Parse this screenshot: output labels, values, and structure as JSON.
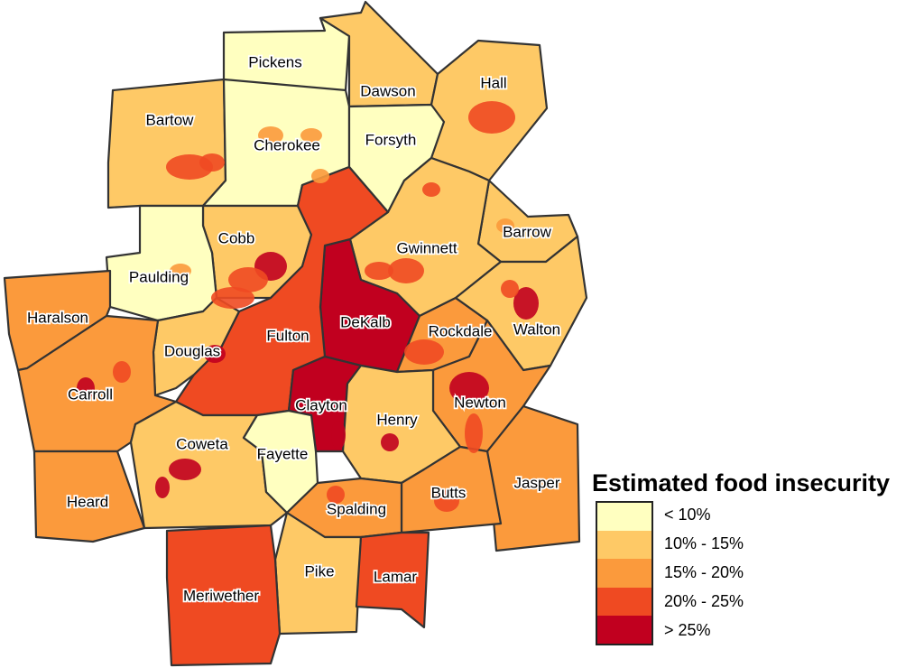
{
  "legend": {
    "title": "Estimated food insecurity",
    "classes": [
      {
        "label": "< 10%",
        "color": "#ffffc0"
      },
      {
        "label": "10% - 15%",
        "color": "#fec966"
      },
      {
        "label": "15% - 20%",
        "color": "#fb9a3c"
      },
      {
        "label": "20% - 25%",
        "color": "#ef4a22"
      },
      {
        "label": "> 25%",
        "color": "#c1001f"
      }
    ]
  },
  "counties": [
    {
      "name": "Pickens",
      "class": 0
    },
    {
      "name": "Dawson",
      "class": 1
    },
    {
      "name": "Hall",
      "class": 1
    },
    {
      "name": "Bartow",
      "class": 1
    },
    {
      "name": "Cherokee",
      "class": 0
    },
    {
      "name": "Forsyth",
      "class": 0
    },
    {
      "name": "Barrow",
      "class": 1
    },
    {
      "name": "Cobb",
      "class": 1
    },
    {
      "name": "Gwinnett",
      "class": 1
    },
    {
      "name": "Paulding",
      "class": 0
    },
    {
      "name": "Haralson",
      "class": 2
    },
    {
      "name": "DeKalb",
      "class": 4
    },
    {
      "name": "Fulton",
      "class": 3
    },
    {
      "name": "Rockdale",
      "class": 2
    },
    {
      "name": "Walton",
      "class": 1
    },
    {
      "name": "Douglas",
      "class": 1
    },
    {
      "name": "Carroll",
      "class": 2
    },
    {
      "name": "Clayton",
      "class": 4
    },
    {
      "name": "Newton",
      "class": 2
    },
    {
      "name": "Henry",
      "class": 1
    },
    {
      "name": "Coweta",
      "class": 1
    },
    {
      "name": "Fayette",
      "class": 0
    },
    {
      "name": "Jasper",
      "class": 2
    },
    {
      "name": "Heard",
      "class": 2
    },
    {
      "name": "Butts",
      "class": 2
    },
    {
      "name": "Spalding",
      "class": 2
    },
    {
      "name": "Pike",
      "class": 1
    },
    {
      "name": "Lamar",
      "class": 3
    },
    {
      "name": "Meriwether",
      "class": 3
    }
  ]
}
